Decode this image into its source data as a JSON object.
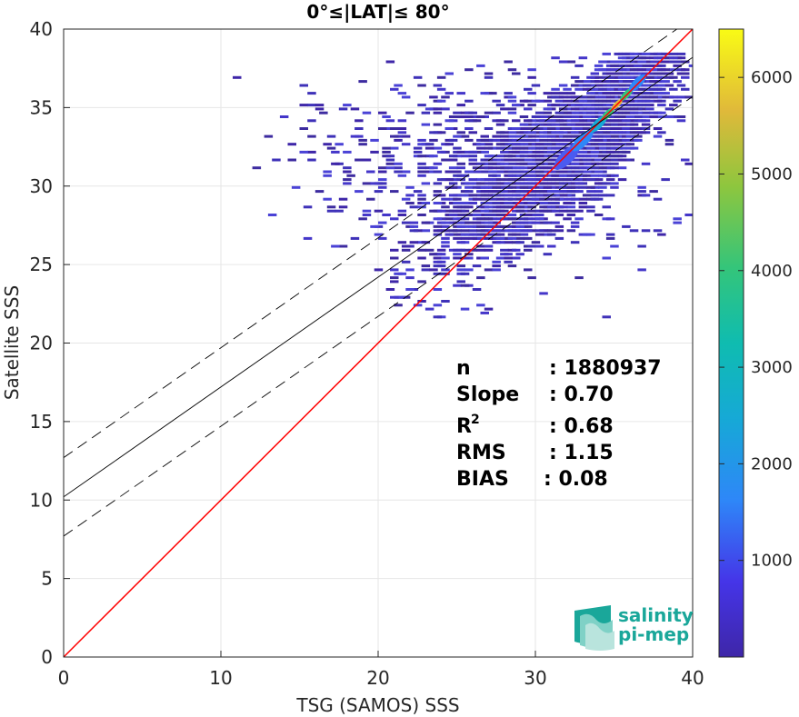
{
  "chart_data": {
    "type": "heatmap",
    "title": "0°≤|LAT|≤ 80°",
    "xlabel": "TSG (SAMOS) SSS",
    "ylabel": "Satellite SSS",
    "xlim": [
      0,
      40
    ],
    "ylim": [
      0,
      40
    ],
    "xticks": [
      "0",
      "10",
      "20",
      "30",
      "40"
    ],
    "yticks": [
      "0",
      "5",
      "10",
      "15",
      "20",
      "25",
      "30",
      "35",
      "40"
    ],
    "grid": true,
    "colorbar": {
      "range": [
        0,
        6500
      ],
      "ticks": [
        "1000",
        "2000",
        "3000",
        "4000",
        "5000",
        "6000"
      ],
      "colormap": "parula"
    },
    "lines": [
      {
        "role": "one-to-one",
        "slope": 1.0,
        "intercept": 0.0,
        "color": "#ff0000",
        "style": "solid"
      },
      {
        "role": "regression",
        "slope": 0.7,
        "intercept": 10.2,
        "color": "#000000",
        "style": "solid"
      },
      {
        "role": "regression-upper",
        "slope": 0.7,
        "intercept": 12.7,
        "color": "#000000",
        "style": "dashed"
      },
      {
        "role": "regression-lower",
        "slope": 0.7,
        "intercept": 7.7,
        "color": "#000000",
        "style": "dashed"
      }
    ],
    "density_peak": {
      "x": 35,
      "y": 35,
      "count": 6500
    },
    "stats": {
      "n_label": "n",
      "n_value": ": 1880937",
      "slope_label": "Slope",
      "slope_value": ": 0.70",
      "r2_label": "R",
      "r2_sup": "2",
      "r2_value": ": 0.68",
      "rms_label": "RMS",
      "rms_value": ": 1.15",
      "bias_label": "BIAS",
      "bias_value": ": 0.08"
    }
  },
  "logo": {
    "line1": "salinity",
    "line2": "pi-mep",
    "colors": [
      "#1aa79a",
      "#7fd1c6",
      "#b9e4dd"
    ]
  }
}
